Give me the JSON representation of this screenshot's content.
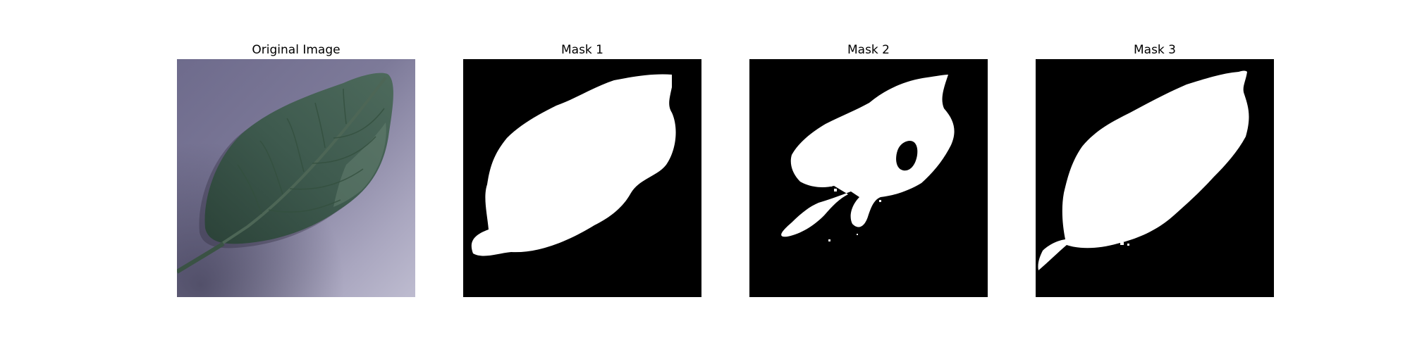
{
  "figure": {
    "background": "#ffffff",
    "panels": [
      {
        "title": "Original Image",
        "kind": "photo",
        "subject": "leaf-photo"
      },
      {
        "title": "Mask 1",
        "kind": "mask",
        "mask_background": "#000000",
        "mask_foreground": "#ffffff"
      },
      {
        "title": "Mask 2",
        "kind": "mask",
        "mask_background": "#000000",
        "mask_foreground": "#ffffff"
      },
      {
        "title": "Mask 3",
        "kind": "mask",
        "mask_background": "#000000",
        "mask_foreground": "#ffffff"
      }
    ]
  }
}
